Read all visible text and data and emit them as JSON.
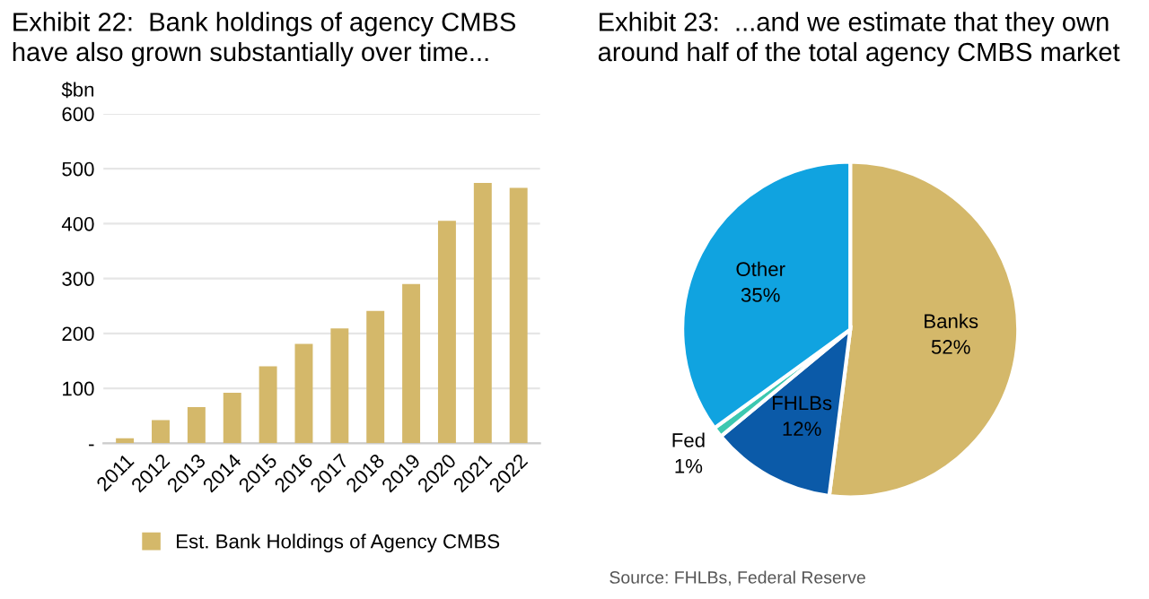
{
  "chart_data": [
    {
      "type": "bar",
      "title": "Exhibit 22:  Bank holdings of agency CMBS\nhave also grown substantially over time...",
      "ylabel": "$bn",
      "categories": [
        "2011",
        "2012",
        "2013",
        "2014",
        "2015",
        "2016",
        "2017",
        "2018",
        "2019",
        "2020",
        "2021",
        "2022"
      ],
      "series": [
        {
          "name": "Est. Bank Holdings of Agency CMBS",
          "color": "#d4b86a",
          "values": [
            9,
            42,
            66,
            92,
            140,
            181,
            209,
            241,
            290,
            405,
            474,
            465
          ]
        }
      ],
      "ylim": [
        0,
        600
      ],
      "yticks": [
        {
          "value": 0,
          "label": "-"
        },
        100,
        200,
        300,
        400,
        500,
        600
      ],
      "grid": "y",
      "legend": "bottom"
    },
    {
      "type": "pie",
      "title": "Exhibit 23:  ...and we estimate that they own\naround half of the total agency CMBS market",
      "categories": [
        "Banks",
        "FHLBs",
        "Fed",
        "Other"
      ],
      "values": [
        52,
        12,
        1,
        35
      ],
      "value_labels": [
        "52%",
        "12%",
        "1%",
        "35%"
      ],
      "colors": [
        "#d4b86a",
        "#0b5aa8",
        "#3cc8b0",
        "#10a3e0"
      ],
      "annotations": [
        "Source: FHLBs, Federal Reserve"
      ]
    }
  ]
}
